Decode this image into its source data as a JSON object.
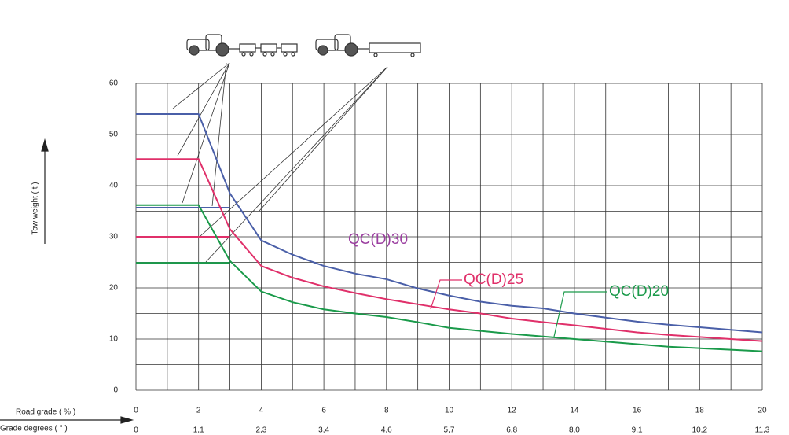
{
  "chart_data": {
    "type": "line",
    "y_label": "Tow weight ( t )",
    "x_label": "Road grade   ( % )",
    "x2_label": "Grade degrees ( °  )",
    "xlim": [
      0,
      20
    ],
    "xticks": [
      0,
      2,
      4,
      6,
      8,
      10,
      12,
      14,
      16,
      18,
      20
    ],
    "x2_tick_labels": [
      "0",
      "1,1",
      "2,3",
      "3,4",
      "4,6",
      "5,7",
      "6,8",
      "8,0",
      "9,1",
      "10,2",
      "11,3"
    ],
    "ylim": [
      0,
      60
    ],
    "yticks": [
      0,
      10,
      20,
      30,
      40,
      50,
      60
    ],
    "grid": true,
    "x": [
      0,
      2,
      3,
      4,
      5,
      6,
      7,
      8,
      9,
      10,
      11,
      12,
      13,
      14,
      15,
      16,
      17,
      18,
      19,
      20
    ],
    "series": [
      {
        "name": "QC(D)30",
        "color": "#4a5fa8",
        "label_color": "#9b3fa0",
        "values": [
          54,
          54,
          38.5,
          29.3,
          26.5,
          24.3,
          22.8,
          21.7,
          19.9,
          18.5,
          17.3,
          16.5,
          16,
          15,
          14.2,
          13.4,
          12.8,
          12.3,
          11.8,
          11.3
        ]
      },
      {
        "name": "QC(D)25",
        "color": "#e0306a",
        "label_color": "#e0306a",
        "values": [
          45.2,
          45.2,
          31.5,
          24.3,
          22,
          20.3,
          19,
          17.8,
          16.8,
          15.8,
          15,
          14,
          13.3,
          12.7,
          12,
          11.3,
          10.8,
          10.4,
          10,
          9.6
        ]
      },
      {
        "name": "QC(D)20",
        "color": "#1a9a4a",
        "label_color": "#1a9a4a",
        "values": [
          36.2,
          36.2,
          25.3,
          19.3,
          17.2,
          15.8,
          15,
          14.3,
          13.3,
          12.2,
          11.6,
          11,
          10.5,
          10,
          9.5,
          9,
          8.5,
          8.2,
          7.9,
          7.6
        ]
      }
    ],
    "flat_lines": [
      {
        "color": "#4a5fa8",
        "x": [
          0,
          3
        ],
        "values": [
          35.7,
          35.7
        ]
      },
      {
        "color": "#e0306a",
        "x": [
          0,
          3
        ],
        "values": [
          30,
          30
        ]
      },
      {
        "color": "#1a9a4a",
        "x": [
          0,
          3
        ],
        "values": [
          24.9,
          24.9
        ]
      }
    ]
  }
}
